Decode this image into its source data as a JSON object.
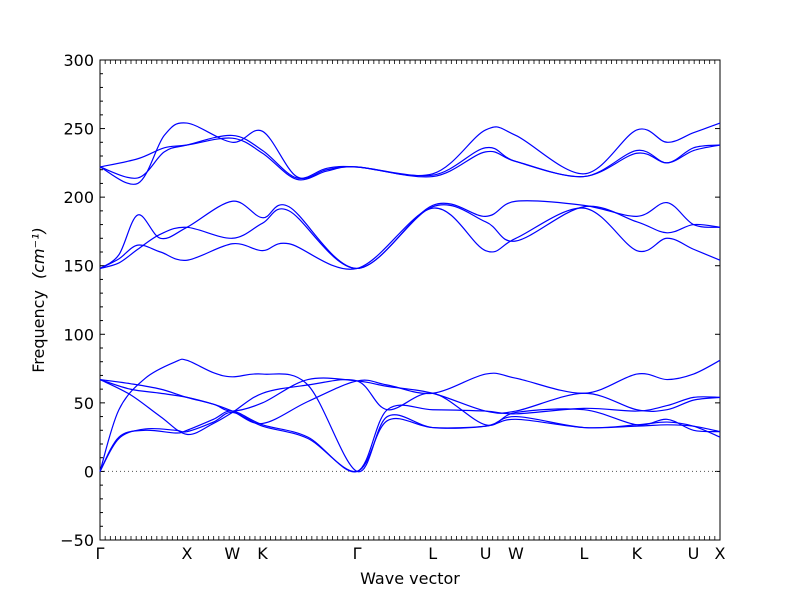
{
  "chart_data": {
    "type": "line",
    "xlabel": "Wave vector",
    "ylabel": "Frequency",
    "ylabel_unit": "(cm⁻¹)",
    "ylim": [
      -50,
      300
    ],
    "yticks": [
      -50,
      0,
      50,
      100,
      150,
      200,
      250,
      300
    ],
    "ytick_labels": [
      "−50",
      "0",
      "50",
      "100",
      "150",
      "200",
      "250",
      "300"
    ],
    "xlim": [
      0,
      16.4
    ],
    "high_symmetry_points": [
      {
        "label": "Γ",
        "x": 0.0
      },
      {
        "label": "X",
        "x": 2.3
      },
      {
        "label": "W",
        "x": 3.5
      },
      {
        "label": "K",
        "x": 4.3
      },
      {
        "label": "Γ",
        "x": 6.8
      },
      {
        "label": "L",
        "x": 8.8
      },
      {
        "label": "U",
        "x": 10.2
      },
      {
        "label": "W",
        "x": 11.0
      },
      {
        "label": "L",
        "x": 12.8
      },
      {
        "label": "K",
        "x": 14.2
      },
      {
        "label": "U",
        "x": 15.7
      },
      {
        "label": "X",
        "x": 16.4
      }
    ],
    "zero_line": 0,
    "grid": false,
    "line_color": "#0000ff",
    "series": [
      {
        "x": [
          0,
          1,
          1.7,
          2.3,
          3.5,
          4.3,
          5.2,
          6.0,
          6.8,
          8.8,
          10.2,
          11.0,
          12.8,
          14.2,
          15.0,
          15.7,
          16.4
        ],
        "y": [
          222,
          214,
          233,
          238,
          245,
          234,
          214,
          221,
          222,
          217,
          249,
          245,
          217,
          249,
          240,
          247,
          254
        ]
      },
      {
        "x": [
          0,
          1,
          1.7,
          2.3,
          3.5,
          4.3,
          5.2,
          6.0,
          6.8,
          8.8,
          10.2,
          11.0,
          12.8,
          14.2,
          15.0,
          15.7,
          16.4
        ],
        "y": [
          222,
          228,
          236,
          238,
          243,
          232,
          213,
          219,
          222,
          215,
          233,
          226,
          215,
          234,
          225,
          236,
          238
        ]
      },
      {
        "x": [
          0,
          1,
          1.7,
          2.3,
          3.5,
          4.3,
          5.2,
          6.0,
          6.8,
          8.8,
          10.2,
          11.0,
          12.8,
          14.2,
          15.0,
          15.7,
          16.4
        ],
        "y": [
          222,
          210,
          245,
          254,
          240,
          248,
          215,
          220,
          222,
          216,
          236,
          226,
          215,
          232,
          225,
          234,
          238
        ]
      },
      {
        "x": [
          0,
          0.5,
          1.0,
          1.6,
          2.3,
          3.5,
          4.3,
          5.0,
          6.8,
          8.8,
          10.2,
          11.0,
          12.8,
          14.2,
          15.0,
          15.7,
          16.4
        ],
        "y": [
          148,
          158,
          187,
          170,
          178,
          197,
          185,
          193,
          148,
          194,
          186,
          197,
          194,
          186,
          196,
          180,
          178
        ]
      },
      {
        "x": [
          0,
          0.5,
          1.0,
          1.6,
          2.3,
          3.5,
          4.3,
          5.0,
          6.8,
          8.8,
          10.2,
          11.0,
          12.8,
          14.2,
          15.0,
          15.7,
          16.4
        ],
        "y": [
          148,
          152,
          162,
          173,
          178,
          170,
          181,
          190,
          148,
          193,
          182,
          168,
          193,
          182,
          174,
          180,
          178
        ]
      },
      {
        "x": [
          0,
          0.5,
          1.0,
          1.6,
          2.3,
          3.5,
          4.3,
          5.0,
          6.8,
          8.8,
          10.2,
          11.0,
          12.8,
          14.2,
          15.0,
          15.7,
          16.4
        ],
        "y": [
          148,
          155,
          165,
          160,
          154,
          166,
          161,
          166,
          148,
          192,
          161,
          170,
          192,
          161,
          170,
          162,
          154
        ]
      },
      {
        "x": [
          0,
          0.8,
          1.6,
          2.3,
          3.0,
          3.5,
          4.3,
          5.5,
          6.8,
          7.6,
          8.8,
          10.2,
          11.0,
          12.8,
          14.2,
          15.0,
          15.7,
          16.4
        ],
        "y": [
          67,
          64,
          60,
          54,
          49,
          44,
          35,
          51,
          66,
          63,
          57,
          71,
          68,
          57,
          71,
          67,
          71,
          81
        ]
      },
      {
        "x": [
          0,
          0.8,
          1.6,
          2.3,
          3.0,
          3.5,
          4.3,
          5.5,
          6.8,
          7.6,
          8.8,
          10.2,
          11.0,
          12.8,
          14.2,
          15.0,
          15.7,
          16.4
        ],
        "y": [
          67,
          60,
          57,
          54,
          49,
          44,
          50,
          67,
          66,
          62,
          57,
          44,
          44,
          57,
          45,
          45,
          52,
          54
        ]
      },
      {
        "x": [
          0,
          0.8,
          1.6,
          2.3,
          3.0,
          3.5,
          4.3,
          5.5,
          6.8,
          7.6,
          8.8,
          10.2,
          11.0,
          12.8,
          14.2,
          15.0,
          15.7,
          16.4
        ],
        "y": [
          67,
          56,
          40,
          27,
          35,
          43,
          57,
          63,
          66,
          45,
          57,
          34,
          43,
          45,
          34,
          38,
          30,
          29
        ]
      },
      {
        "x": [
          0,
          0.5,
          1.2,
          2.0,
          2.3,
          3.0,
          3.5,
          4.3,
          5.5,
          6.8,
          7.6,
          8.8,
          10.2,
          11.0,
          12.8,
          14.2,
          15.0,
          15.7,
          16.4
        ],
        "y": [
          0,
          25,
          30,
          28,
          30,
          38,
          44,
          34,
          25,
          0,
          45,
          45,
          44,
          42,
          46,
          44,
          48,
          54,
          54
        ]
      },
      {
        "x": [
          0,
          0.5,
          1.2,
          2.0,
          2.3,
          3.0,
          3.5,
          4.3,
          5.5,
          6.8,
          7.6,
          8.8,
          10.2,
          11.0,
          12.8,
          14.2,
          15.0,
          15.7,
          16.4
        ],
        "y": [
          0,
          45,
          68,
          80,
          81,
          72,
          69,
          71,
          63,
          0,
          40,
          32,
          33,
          40,
          32,
          34,
          36,
          33,
          25
        ]
      },
      {
        "x": [
          0,
          0.5,
          1.2,
          2.0,
          2.3,
          3.0,
          3.5,
          4.3,
          5.5,
          6.8,
          7.6,
          8.8,
          10.2,
          11.0,
          12.8,
          14.2,
          15.0,
          15.7,
          16.4
        ],
        "y": [
          0,
          24,
          31,
          30,
          29,
          36,
          43,
          33,
          24,
          0,
          37,
          32,
          33,
          38,
          32,
          33,
          34,
          33,
          29
        ]
      }
    ]
  }
}
